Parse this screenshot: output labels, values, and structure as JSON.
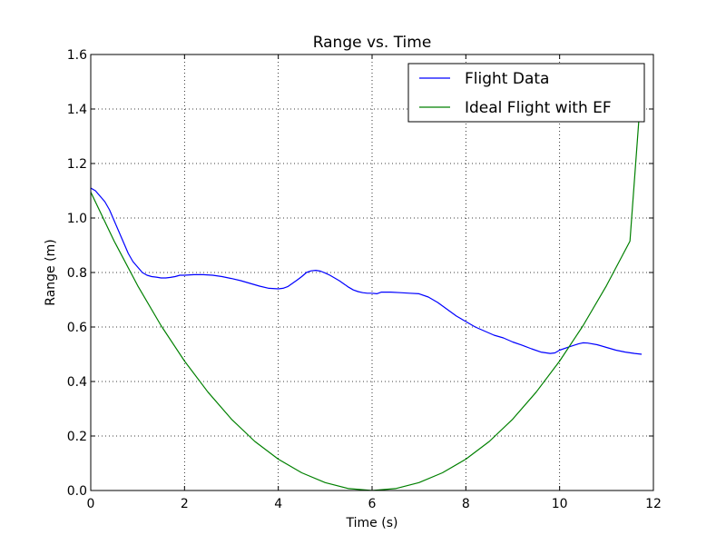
{
  "chart_data": {
    "type": "line",
    "title": "Range vs. Time",
    "xlabel": "Time (s)",
    "ylabel": "Range (m)",
    "xlim": [
      0,
      12
    ],
    "ylim": [
      0,
      1.6
    ],
    "xticks": [
      0,
      2,
      4,
      6,
      8,
      10,
      12
    ],
    "yticks": [
      0.0,
      0.2,
      0.4,
      0.6,
      0.8,
      1.0,
      1.2,
      1.4,
      1.6
    ],
    "xtick_labels": [
      "0",
      "2",
      "4",
      "6",
      "8",
      "10",
      "12"
    ],
    "ytick_labels": [
      "0.0",
      "0.2",
      "0.4",
      "0.6",
      "0.8",
      "1.0",
      "1.2",
      "1.4",
      "1.6"
    ],
    "grid": true,
    "legend_position": "top-right",
    "series": [
      {
        "name": "Flight Data",
        "color": "#0000ff",
        "x": [
          0,
          0.1,
          0.2,
          0.3,
          0.4,
          0.5,
          0.6,
          0.7,
          0.8,
          0.9,
          1.0,
          1.1,
          1.2,
          1.3,
          1.4,
          1.5,
          1.6,
          1.7,
          1.8,
          1.9,
          2.0,
          2.2,
          2.4,
          2.6,
          2.8,
          3.0,
          3.2,
          3.4,
          3.6,
          3.8,
          4.0,
          4.1,
          4.2,
          4.3,
          4.4,
          4.5,
          4.6,
          4.7,
          4.8,
          4.9,
          5.0,
          5.1,
          5.2,
          5.3,
          5.4,
          5.5,
          5.6,
          5.7,
          5.8,
          5.9,
          6.0,
          6.1,
          6.2,
          6.4,
          6.6,
          6.8,
          7.0,
          7.2,
          7.4,
          7.6,
          7.8,
          8.0,
          8.2,
          8.4,
          8.6,
          8.8,
          9.0,
          9.2,
          9.4,
          9.6,
          9.8,
          9.9,
          10.0,
          10.2,
          10.4,
          10.5,
          10.6,
          10.8,
          11.0,
          11.2,
          11.4,
          11.6,
          11.75
        ],
        "y": [
          1.11,
          1.1,
          1.08,
          1.06,
          1.03,
          0.99,
          0.95,
          0.91,
          0.87,
          0.84,
          0.82,
          0.8,
          0.79,
          0.785,
          0.783,
          0.78,
          0.78,
          0.782,
          0.785,
          0.79,
          0.79,
          0.792,
          0.792,
          0.79,
          0.785,
          0.778,
          0.77,
          0.76,
          0.75,
          0.742,
          0.74,
          0.742,
          0.748,
          0.76,
          0.772,
          0.785,
          0.8,
          0.806,
          0.808,
          0.805,
          0.798,
          0.79,
          0.78,
          0.77,
          0.758,
          0.746,
          0.736,
          0.73,
          0.726,
          0.724,
          0.724,
          0.722,
          0.728,
          0.728,
          0.726,
          0.724,
          0.722,
          0.71,
          0.69,
          0.665,
          0.64,
          0.62,
          0.6,
          0.585,
          0.57,
          0.56,
          0.545,
          0.533,
          0.52,
          0.508,
          0.503,
          0.505,
          0.515,
          0.527,
          0.538,
          0.542,
          0.541,
          0.535,
          0.525,
          0.515,
          0.508,
          0.503,
          0.5
        ]
      },
      {
        "name": "Ideal Flight with EF",
        "color": "#008000",
        "x": [
          0,
          0.5,
          1.0,
          1.5,
          2.0,
          2.5,
          3.0,
          3.5,
          4.0,
          4.5,
          5.0,
          5.5,
          6.0,
          6.5,
          7.0,
          7.5,
          8.0,
          8.5,
          9.0,
          9.5,
          10.0,
          10.5,
          11.0,
          11.5,
          11.75
        ],
        "y": [
          1.095,
          0.915,
          0.752,
          0.605,
          0.475,
          0.361,
          0.262,
          0.18,
          0.115,
          0.065,
          0.029,
          0.007,
          0.0,
          0.007,
          0.029,
          0.065,
          0.115,
          0.18,
          0.262,
          0.361,
          0.475,
          0.605,
          0.752,
          0.915,
          1.5
        ]
      }
    ]
  }
}
